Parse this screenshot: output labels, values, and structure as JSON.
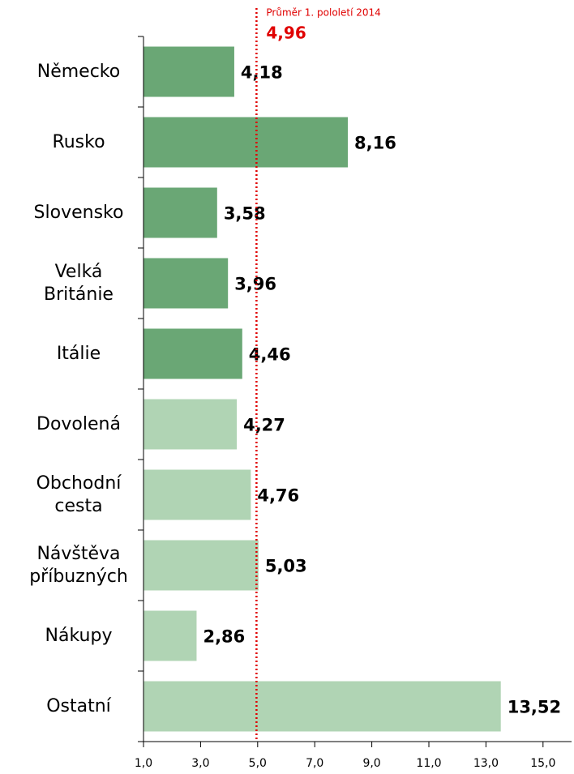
{
  "chart_data": {
    "type": "bar",
    "orientation": "horizontal",
    "categories": [
      "Německo",
      "Rusko",
      "Slovensko",
      "Velká Británie",
      "Itálie",
      "Dovolená",
      "Obchodní cesta",
      "Návštěva příbuzných",
      "Nákupy",
      "Ostatní"
    ],
    "values": [
      4.18,
      8.16,
      3.58,
      3.96,
      4.46,
      4.27,
      4.76,
      5.03,
      2.86,
      13.52
    ],
    "value_labels": [
      "4,18",
      "8,16",
      "3,58",
      "3,96",
      "4,46",
      "4,27",
      "4,76",
      "5,03",
      "2,86",
      "13,52"
    ],
    "colors": [
      "#6aa775",
      "#6aa775",
      "#6aa775",
      "#6aa775",
      "#6aa775",
      "#b0d4b4",
      "#b0d4b4",
      "#b0d4b4",
      "#b0d4b4",
      "#b0d4b4"
    ],
    "xlim": [
      1,
      16
    ],
    "xticks": [
      {
        "value": 1,
        "label": "1,0"
      },
      {
        "value": 3,
        "label": "3,0"
      },
      {
        "value": 5,
        "label": "5,0"
      },
      {
        "value": 7,
        "label": "7,0"
      },
      {
        "value": 9,
        "label": "9,0"
      },
      {
        "value": 11,
        "label": "11,0"
      },
      {
        "value": 13,
        "label": "13,0"
      },
      {
        "value": 15,
        "label": "15,0"
      }
    ],
    "reference_line": {
      "label": "Průměr 1. pololetí 2014",
      "value": 4.96,
      "value_label": "4,96",
      "color": "#e00000"
    }
  }
}
